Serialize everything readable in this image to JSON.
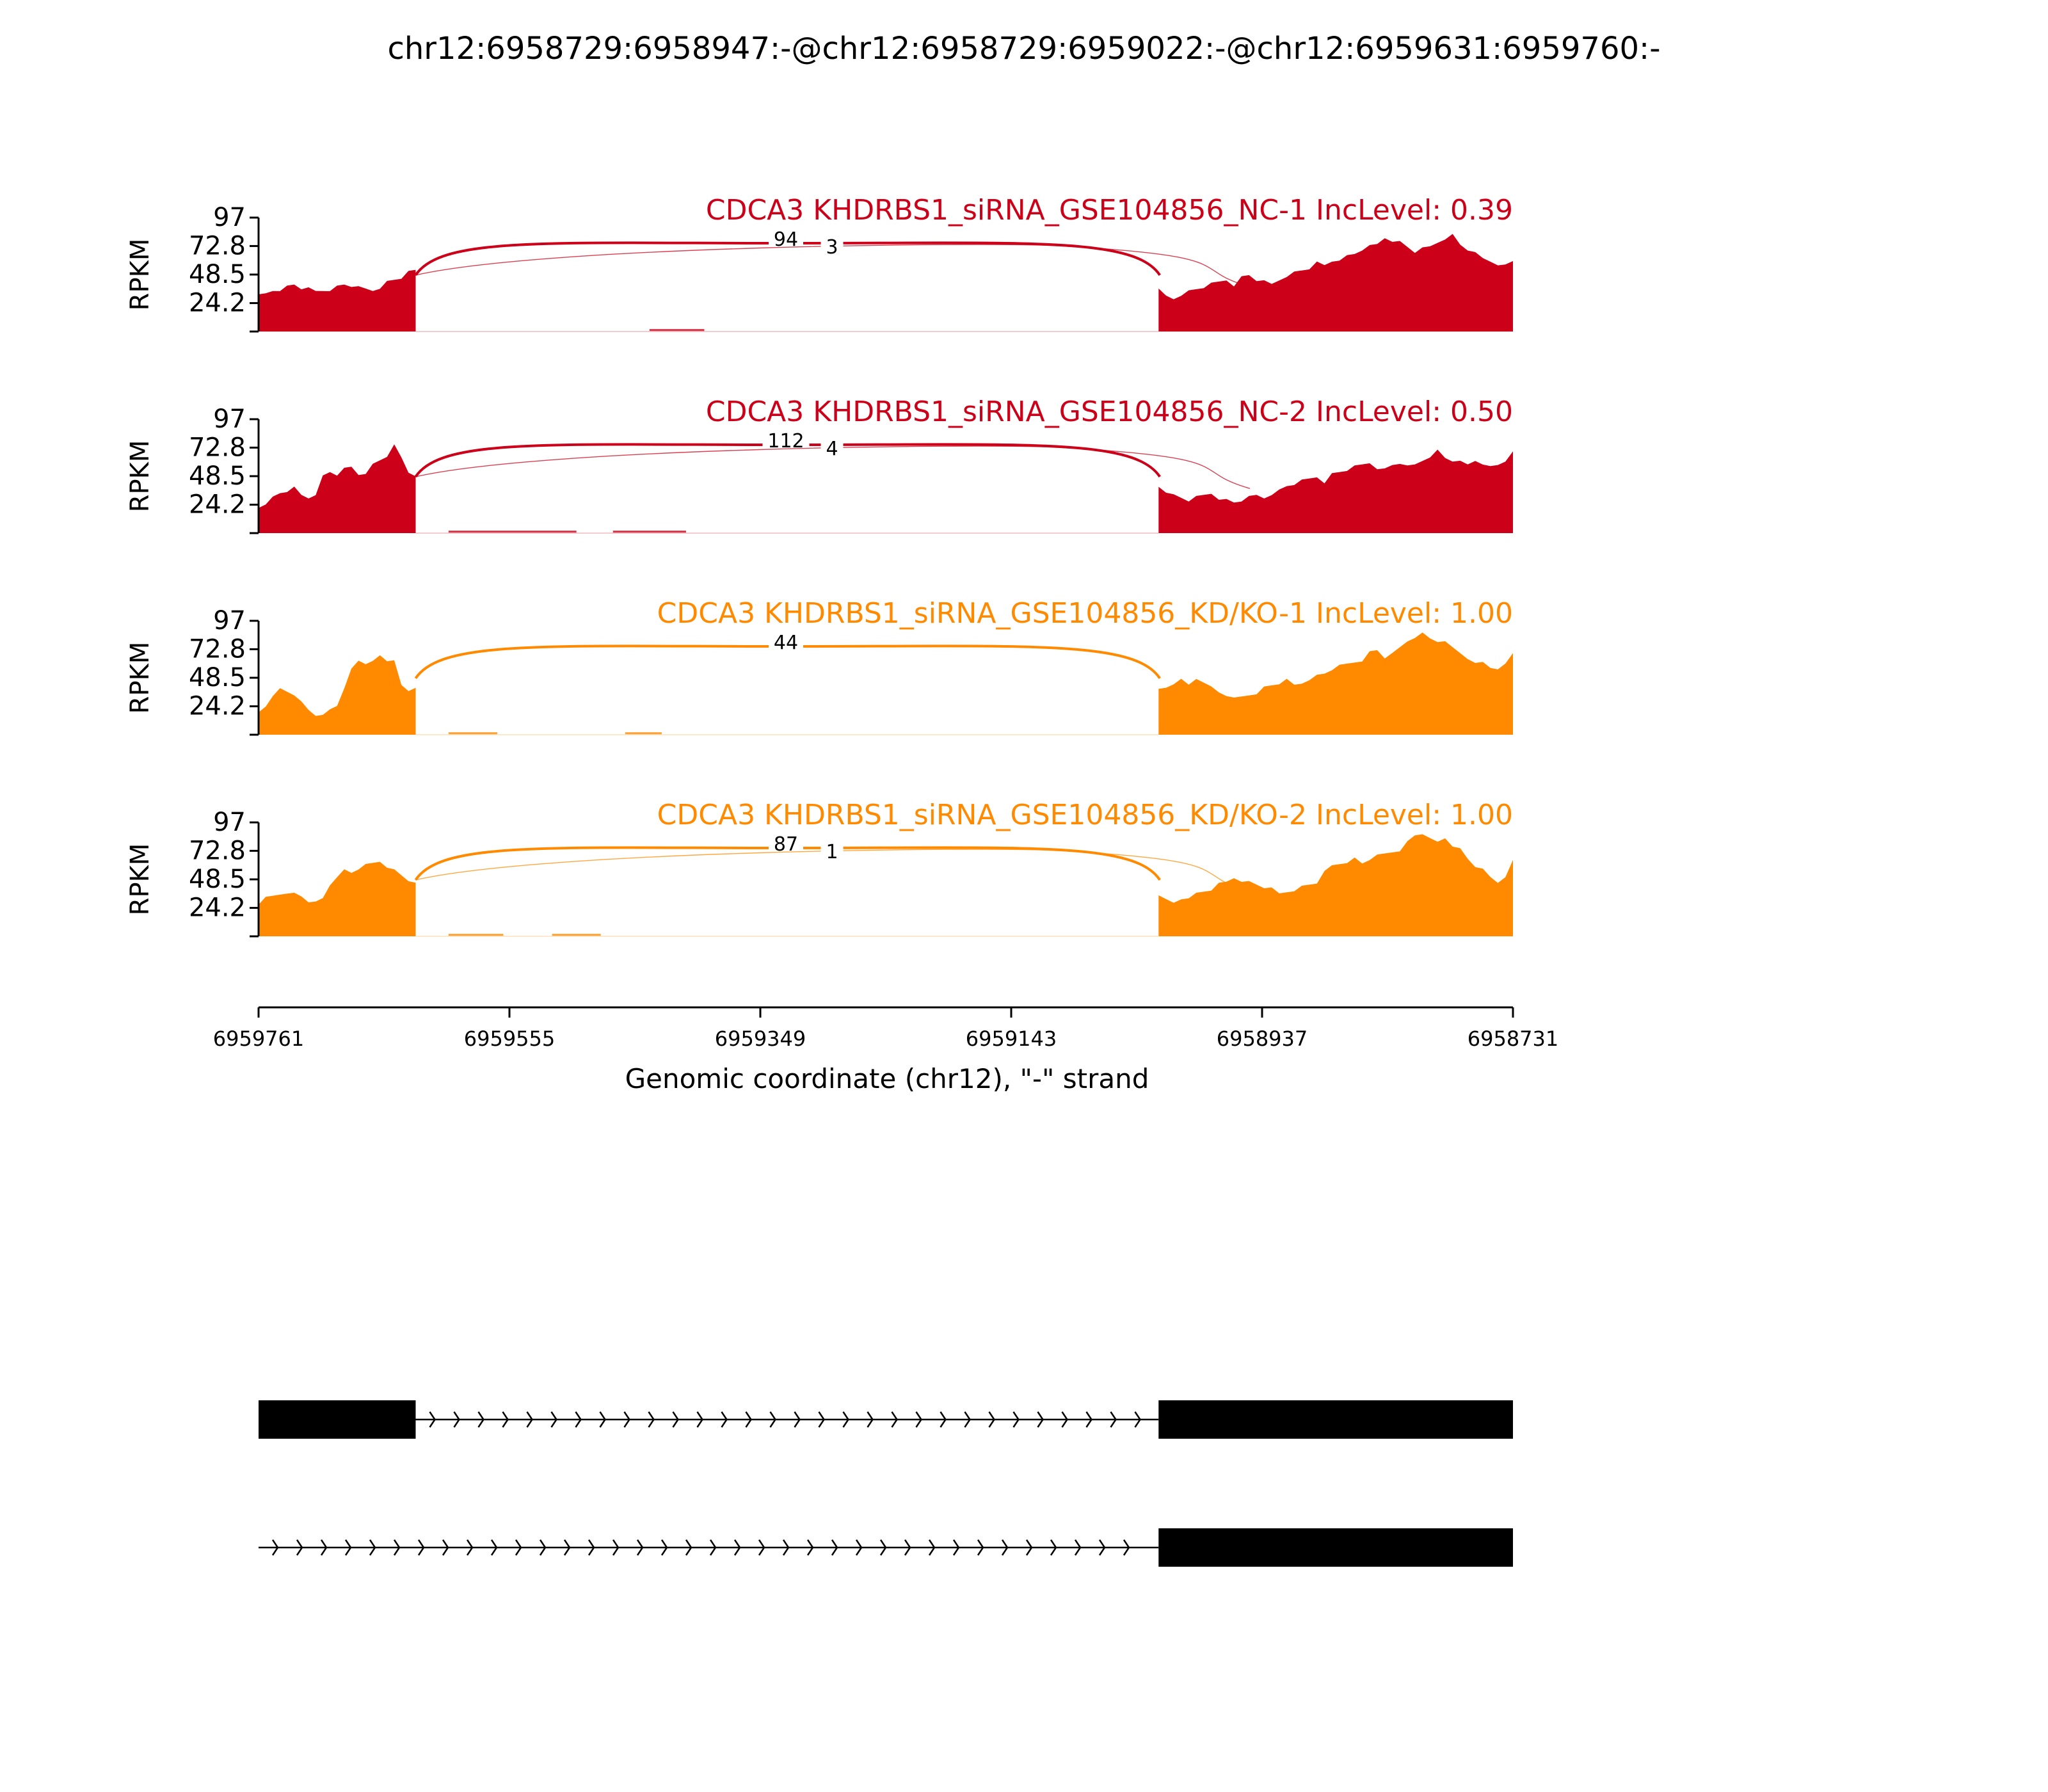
{
  "title": "chr12:6958729:6958947:-@chr12:6958729:6959022:-@chr12:6959631:6959760:-",
  "colors": {
    "nc": "#cc0018",
    "kd": "#ff8a00",
    "axis": "#000000",
    "text": "#000000"
  },
  "chart_data": {
    "type": "area",
    "x_axis": {
      "label": "Genomic coordinate (chr12), \"-\" strand",
      "ticks": [
        "6959761",
        "6959555",
        "6959349",
        "6959143",
        "6958937",
        "6958731"
      ],
      "range": [
        6959761,
        6958731
      ],
      "reversed": true
    },
    "y_axis": {
      "label": "RPKM",
      "ticks": [
        "97",
        "72.8",
        "48.5",
        "24.2"
      ],
      "range": [
        0,
        97
      ]
    },
    "grid": false,
    "tracks": [
      {
        "label": "CDCA3 KHDRBS1_siRNA_GSE104856_NC-1 IncLevel: 0.39",
        "color_key": "nc",
        "junctions": [
          {
            "count": "94",
            "from": 6959631,
            "to": 6959022,
            "weight": "major"
          },
          {
            "count": "3",
            "from": 6959631,
            "to": 6958947,
            "weight": "minor"
          }
        ],
        "coverage": [
          {
            "start": 6959761,
            "end": 6959632,
            "profile": [
              30,
              32,
              35,
              36,
              38,
              40,
              37,
              36,
              34,
              35,
              36,
              38,
              40,
              39,
              37,
              36,
              35,
              38,
              42,
              44,
              46,
              50,
              52
            ]
          },
          {
            "start": 6959022,
            "end": 6958731,
            "profile": [
              35,
              30,
              28,
              32,
              34,
              36,
              38,
              40,
              42,
              44,
              40,
              46,
              48,
              44,
              42,
              40,
              44,
              48,
              50,
              52,
              54,
              58,
              56,
              60,
              62,
              64,
              66,
              70,
              72,
              74,
              80,
              78,
              76,
              72,
              68,
              70,
              72,
              76,
              80,
              82,
              74,
              70,
              66,
              62,
              60,
              58,
              56,
              60
            ]
          }
        ],
        "low_segments": [
          {
            "start": 6959440,
            "end": 6959395,
            "level": 1
          }
        ]
      },
      {
        "label": "CDCA3 KHDRBS1_siRNA_GSE104856_NC-2 IncLevel: 0.50",
        "color_key": "nc",
        "junctions": [
          {
            "count": "112",
            "from": 6959631,
            "to": 6959022,
            "weight": "major"
          },
          {
            "count": "4",
            "from": 6959631,
            "to": 6958947,
            "weight": "minor"
          }
        ],
        "coverage": [
          {
            "start": 6959761,
            "end": 6959632,
            "profile": [
              22,
              26,
              30,
              34,
              36,
              38,
              32,
              30,
              34,
              48,
              52,
              50,
              54,
              56,
              50,
              52,
              58,
              62,
              66,
              74,
              64,
              52,
              50
            ]
          },
          {
            "start": 6959022,
            "end": 6958731,
            "profile": [
              40,
              36,
              32,
              30,
              28,
              30,
              32,
              34,
              30,
              28,
              26,
              28,
              30,
              32,
              30,
              34,
              36,
              40,
              42,
              44,
              46,
              48,
              44,
              50,
              52,
              54,
              56,
              58,
              60,
              56,
              54,
              58,
              60,
              56,
              58,
              62,
              66,
              70,
              64,
              62,
              60,
              58,
              62,
              60,
              56,
              58,
              62,
              68
            ]
          }
        ],
        "low_segments": [
          {
            "start": 6959605,
            "end": 6959500,
            "level": 1
          },
          {
            "start": 6959470,
            "end": 6959410,
            "level": 1
          }
        ]
      },
      {
        "label": "CDCA3 KHDRBS1_siRNA_GSE104856_KD/KO-1 IncLevel: 1.00",
        "color_key": "kd",
        "junctions": [
          {
            "count": "44",
            "from": 6959631,
            "to": 6959022,
            "weight": "major"
          }
        ],
        "coverage": [
          {
            "start": 6959761,
            "end": 6959632,
            "profile": [
              18,
              24,
              34,
              38,
              36,
              34,
              30,
              20,
              16,
              18,
              20,
              24,
              40,
              58,
              62,
              60,
              64,
              66,
              62,
              64,
              44,
              36,
              40
            ]
          },
          {
            "start": 6959022,
            "end": 6958731,
            "profile": [
              38,
              40,
              44,
              46,
              42,
              48,
              46,
              40,
              36,
              34,
              30,
              32,
              34,
              36,
              40,
              42,
              44,
              46,
              42,
              44,
              48,
              50,
              52,
              56,
              58,
              60,
              62,
              64,
              70,
              72,
              66,
              68,
              74,
              80,
              84,
              86,
              82,
              80,
              78,
              74,
              70,
              66,
              60,
              62,
              58,
              54,
              60,
              70
            ]
          }
        ],
        "low_segments": [
          {
            "start": 6959605,
            "end": 6959565,
            "level": 1
          },
          {
            "start": 6959460,
            "end": 6959430,
            "level": 1
          }
        ]
      },
      {
        "label": "CDCA3 KHDRBS1_siRNA_GSE104856_KD/KO-2 IncLevel: 1.00",
        "color_key": "kd",
        "junctions": [
          {
            "count": "87",
            "from": 6959631,
            "to": 6959022,
            "weight": "major"
          },
          {
            "count": "1",
            "from": 6959631,
            "to": 6958947,
            "weight": "minor"
          }
        ],
        "coverage": [
          {
            "start": 6959761,
            "end": 6959632,
            "profile": [
              28,
              32,
              34,
              36,
              38,
              36,
              34,
              30,
              28,
              32,
              44,
              52,
              56,
              54,
              58,
              60,
              62,
              64,
              60,
              56,
              52,
              48,
              44
            ]
          },
          {
            "start": 6959022,
            "end": 6958731,
            "profile": [
              36,
              30,
              28,
              32,
              34,
              36,
              38,
              40,
              44,
              46,
              50,
              48,
              46,
              44,
              42,
              40,
              36,
              38,
              40,
              42,
              44,
              46,
              54,
              60,
              62,
              64,
              66,
              62,
              66,
              68,
              70,
              72,
              74,
              80,
              86,
              88,
              82,
              80,
              84,
              78,
              74,
              66,
              60,
              56,
              50,
              46,
              52,
              64
            ]
          }
        ],
        "low_segments": [
          {
            "start": 6959605,
            "end": 6959560,
            "level": 1
          },
          {
            "start": 6959520,
            "end": 6959480,
            "level": 1
          }
        ]
      }
    ],
    "isoforms": [
      {
        "exons": [
          {
            "start": 6959761,
            "end": 6959632
          },
          {
            "start": 6959022,
            "end": 6958731
          }
        ],
        "intron": {
          "start": 6959632,
          "end": 6959022
        }
      },
      {
        "exons": [
          {
            "start": 6959022,
            "end": 6958731
          }
        ],
        "intron": {
          "start": 6959761,
          "end": 6959022
        }
      }
    ]
  }
}
